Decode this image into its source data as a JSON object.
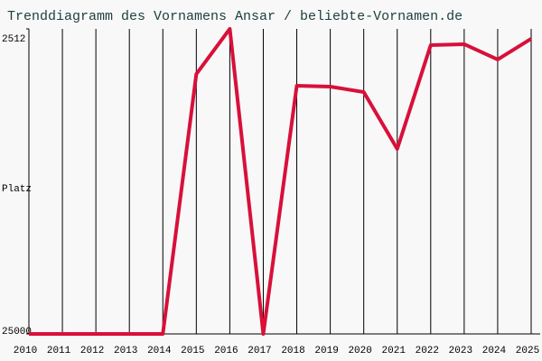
{
  "chart_data": {
    "type": "line",
    "title": "Trenddiagramm des Vornamens Ansar / beliebte-Vornamen.de",
    "y_label": "Platz",
    "categories": [
      "2010",
      "2011",
      "2012",
      "2013",
      "2014",
      "2015",
      "2016",
      "2017",
      "2018",
      "2019",
      "2020",
      "2021",
      "2022",
      "2023",
      "2024",
      "2025"
    ],
    "series": [
      {
        "name": "Ansar",
        "color": "#d8103a",
        "values": [
          25000,
          25000,
          25000,
          25000,
          25000,
          5840,
          2512,
          25000,
          6700,
          6770,
          7170,
          11360,
          3710,
          3640,
          4770,
          3240
        ]
      }
    ],
    "ylim": [
      25000,
      2512
    ],
    "yticks": [
      2512,
      25000
    ],
    "grid": true
  }
}
